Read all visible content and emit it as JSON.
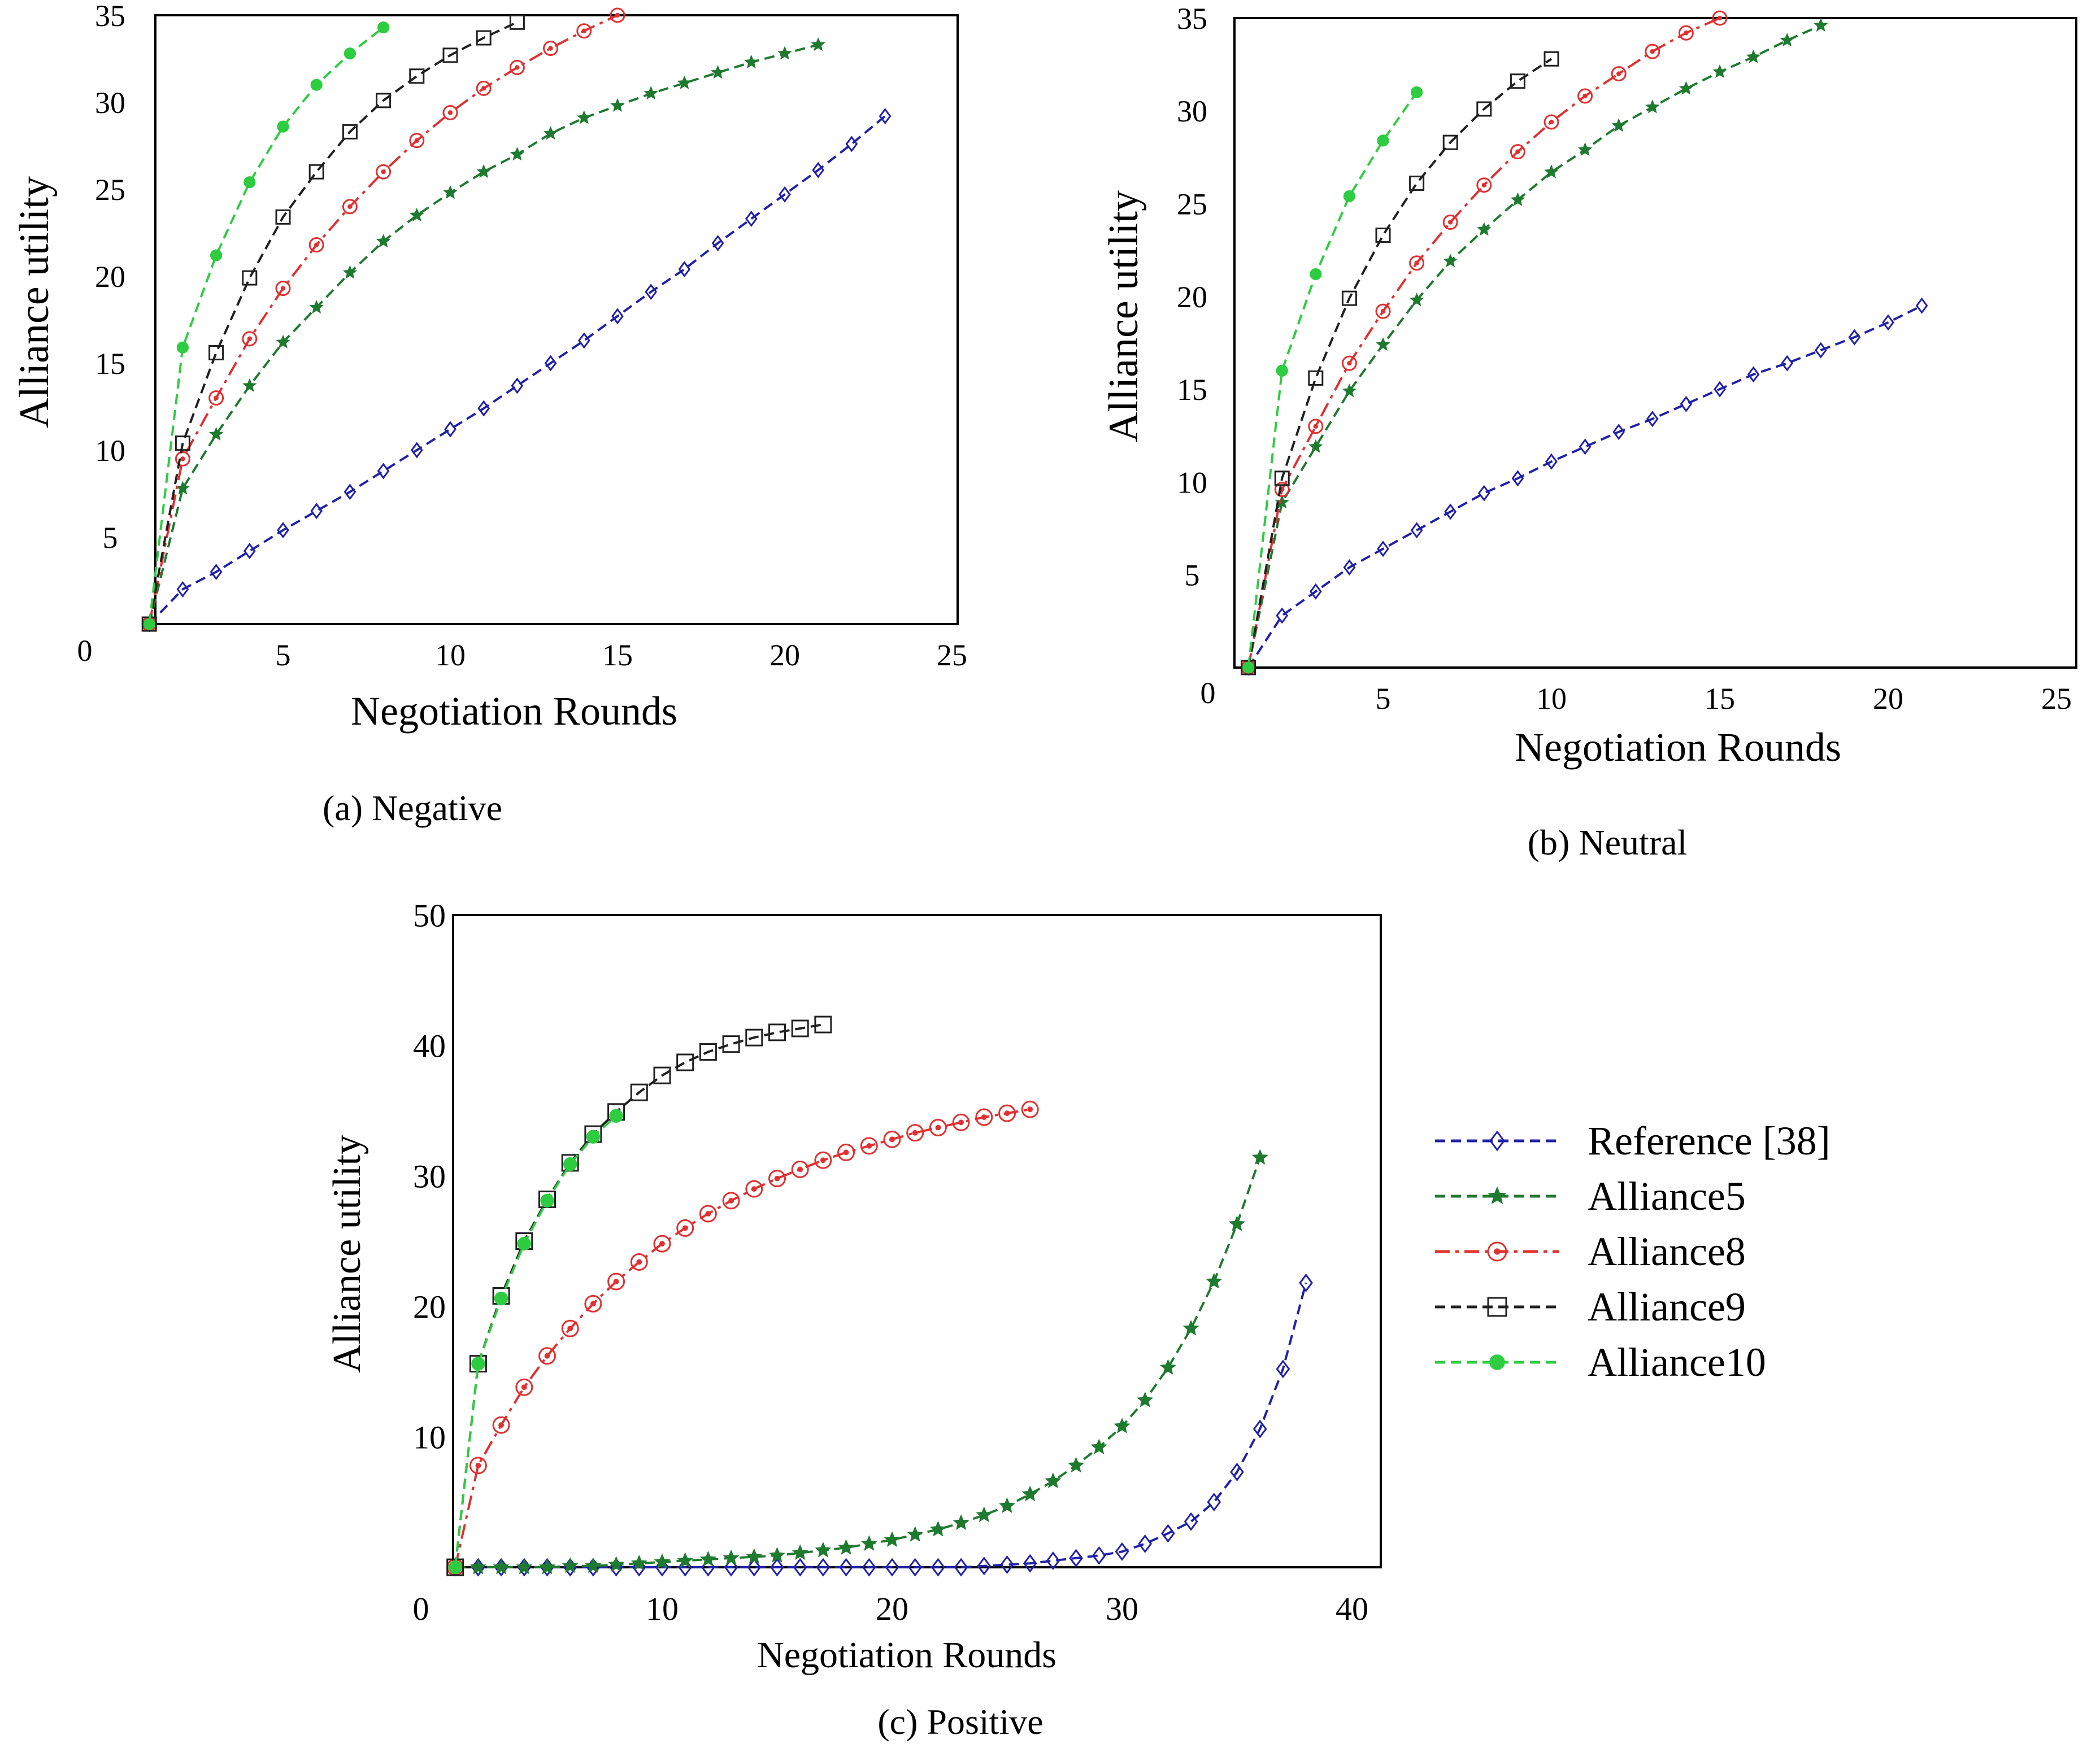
{
  "figure": {
    "legend": {
      "entries": [
        {
          "label": "Reference [38]",
          "series": "ref"
        },
        {
          "label": "Alliance5",
          "series": "a5"
        },
        {
          "label": "Alliance8",
          "series": "a8"
        },
        {
          "label": "Alliance9",
          "series": "a9"
        },
        {
          "label": "Alliance10",
          "series": "a10"
        }
      ]
    }
  },
  "series_styles": {
    "ref": {
      "color": "#2020a8",
      "marker": "diamond",
      "dash": "dashed"
    },
    "a5": {
      "color": "#1e7a2e",
      "marker": "star",
      "dash": "dashed"
    },
    "a8": {
      "color": "#e03030",
      "marker": "circle",
      "dash": "dashdot"
    },
    "a9": {
      "color": "#202020",
      "marker": "square",
      "dash": "dashed"
    },
    "a10": {
      "color": "#2ecc40",
      "marker": "dot",
      "dash": "dashed"
    }
  },
  "chart_data": [
    {
      "type": "line",
      "caption": "(a) Negative",
      "xlabel": "Negotiation Rounds",
      "ylabel": "Alliance utility",
      "xlim": [
        0,
        25
      ],
      "ylim": [
        0,
        35
      ],
      "xticks": [
        "0",
        "5",
        "10",
        "15",
        "20",
        "25"
      ],
      "yticks": [
        "5",
        "10",
        "15",
        "20",
        "25",
        "30",
        "35"
      ],
      "ytick_values": [
        5,
        10,
        15,
        20,
        25,
        30,
        35
      ],
      "series": [
        {
          "name": "Reference [38]",
          "key": "ref",
          "x": [
            1,
            2,
            3,
            4,
            5,
            6,
            7,
            8,
            9,
            10,
            11,
            12,
            13,
            14,
            15,
            16,
            17,
            18,
            19,
            20,
            21,
            22,
            23
          ],
          "values": [
            0,
            2,
            3,
            4.2,
            5.4,
            6.5,
            7.6,
            8.8,
            10,
            11.2,
            12.4,
            13.7,
            15,
            16.3,
            17.7,
            19.1,
            20.4,
            21.9,
            23.3,
            24.7,
            26.1,
            27.6,
            29.2
          ]
        },
        {
          "name": "Alliance5",
          "key": "a5",
          "x": [
            1,
            2,
            3,
            4,
            5,
            6,
            7,
            8,
            9,
            10,
            11,
            12,
            13,
            14,
            15,
            16,
            17,
            18,
            19,
            20,
            21
          ],
          "values": [
            0,
            7.8,
            10.9,
            13.7,
            16.2,
            18.2,
            20.2,
            22,
            23.5,
            24.8,
            26,
            27,
            28.2,
            29.1,
            29.8,
            30.5,
            31.1,
            31.7,
            32.3,
            32.8,
            33.3
          ]
        },
        {
          "name": "Alliance8",
          "key": "a8",
          "x": [
            1,
            2,
            3,
            4,
            5,
            6,
            7,
            8,
            9,
            10,
            11,
            12,
            13,
            14,
            15
          ],
          "values": [
            0,
            9.5,
            13,
            16.4,
            19.3,
            21.8,
            24,
            26,
            27.8,
            29.4,
            30.8,
            32,
            33.1,
            34.1,
            35
          ]
        },
        {
          "name": "Alliance9",
          "key": "a9",
          "x": [
            1,
            2,
            3,
            4,
            5,
            6,
            7,
            8,
            9,
            10,
            11,
            12
          ],
          "values": [
            0,
            10.4,
            15.6,
            19.9,
            23.4,
            26,
            28.3,
            30.1,
            31.5,
            32.7,
            33.7,
            34.6
          ]
        },
        {
          "name": "Alliance10",
          "key": "a10",
          "x": [
            1,
            2,
            3,
            4,
            5,
            6,
            7,
            8
          ],
          "values": [
            0,
            15.9,
            21.2,
            25.4,
            28.6,
            31,
            32.8,
            34.3
          ]
        }
      ]
    },
    {
      "type": "line",
      "caption": "(b) Neutral",
      "xlabel": "Negotiation Rounds",
      "ylabel": "Alliance utility",
      "xlim": [
        0,
        25
      ],
      "ylim": [
        0,
        35
      ],
      "xticks": [
        "0",
        "5",
        "10",
        "15",
        "20",
        "25"
      ],
      "yticks": [
        "5",
        "10",
        "15",
        "20",
        "25",
        "30",
        "35"
      ],
      "ytick_values": [
        5,
        10,
        15,
        20,
        25,
        30,
        35
      ],
      "series": [
        {
          "name": "Reference [38]",
          "key": "ref",
          "x": [
            1,
            2,
            3,
            4,
            5,
            6,
            7,
            8,
            9,
            10,
            11,
            12,
            13,
            14,
            15,
            16,
            17,
            18,
            19,
            20,
            21
          ],
          "values": [
            0,
            2.8,
            4.1,
            5.4,
            6.4,
            7.4,
            8.4,
            9.4,
            10.2,
            11.1,
            11.9,
            12.7,
            13.4,
            14.2,
            15,
            15.8,
            16.4,
            17.1,
            17.8,
            18.6,
            19.5
          ]
        },
        {
          "name": "Alliance5",
          "key": "a5",
          "x": [
            1,
            2,
            3,
            4,
            5,
            6,
            7,
            8,
            9,
            10,
            11,
            12,
            13,
            14,
            15,
            16,
            17,
            18
          ],
          "values": [
            0,
            8.9,
            11.9,
            14.9,
            17.4,
            19.8,
            21.9,
            23.6,
            25.2,
            26.7,
            27.9,
            29.2,
            30.2,
            31.2,
            32.1,
            32.9,
            33.8,
            34.6
          ]
        },
        {
          "name": "Alliance8",
          "key": "a8",
          "x": [
            1,
            2,
            3,
            4,
            5,
            6,
            7,
            8,
            9,
            10,
            11,
            12,
            13,
            14,
            15
          ],
          "values": [
            0,
            9.6,
            13,
            16.4,
            19.2,
            21.8,
            24,
            26,
            27.8,
            29.4,
            30.8,
            32,
            33.2,
            34.2,
            35
          ]
        },
        {
          "name": "Alliance9",
          "key": "a9",
          "x": [
            1,
            2,
            3,
            4,
            5,
            6,
            7,
            8,
            9,
            10
          ],
          "values": [
            0,
            10.2,
            15.6,
            19.9,
            23.3,
            26.1,
            28.3,
            30.1,
            31.6,
            32.8
          ]
        },
        {
          "name": "Alliance10",
          "key": "a10",
          "x": [
            1,
            2,
            3,
            4,
            5,
            6
          ],
          "values": [
            0,
            16,
            21.2,
            25.4,
            28.4,
            31
          ]
        }
      ]
    },
    {
      "type": "line",
      "caption": "(c) Positive",
      "xlabel": "Negotiation Rounds",
      "ylabel": "Alliance utility",
      "xlim": [
        0,
        40
      ],
      "ylim": [
        0,
        50
      ],
      "xticks": [
        "0",
        "10",
        "20",
        "30",
        "40"
      ],
      "yticks": [
        "10",
        "20",
        "30",
        "40",
        "50"
      ],
      "ytick_values": [
        10,
        20,
        30,
        40,
        50
      ],
      "series": [
        {
          "name": "Reference [38]",
          "key": "ref",
          "x": [
            1,
            2,
            3,
            4,
            5,
            6,
            7,
            8,
            9,
            10,
            11,
            12,
            13,
            14,
            15,
            16,
            17,
            18,
            19,
            20,
            21,
            22,
            23,
            24,
            25,
            26,
            27,
            28,
            29,
            30,
            31,
            32,
            33,
            34,
            35,
            36,
            37,
            38
          ],
          "values": [
            0,
            0,
            0,
            0,
            0,
            0,
            0,
            0,
            0,
            0,
            0,
            0,
            0,
            0,
            0,
            0,
            0,
            0,
            0,
            0,
            0,
            0,
            0,
            0.1,
            0.2,
            0.3,
            0.5,
            0.7,
            0.9,
            1.2,
            1.8,
            2.6,
            3.5,
            5,
            7.3,
            10.6,
            15.2,
            21.8
          ]
        },
        {
          "name": "Alliance5",
          "key": "a5",
          "x": [
            1,
            2,
            3,
            4,
            5,
            6,
            7,
            8,
            9,
            10,
            11,
            12,
            13,
            14,
            15,
            16,
            17,
            18,
            19,
            20,
            21,
            22,
            23,
            24,
            25,
            26,
            27,
            28,
            29,
            30,
            31,
            32,
            33,
            34,
            35,
            36
          ],
          "values": [
            0,
            0,
            0,
            0,
            0,
            0.1,
            0.1,
            0.2,
            0.3,
            0.4,
            0.5,
            0.6,
            0.7,
            0.8,
            0.9,
            1.1,
            1.3,
            1.5,
            1.8,
            2.1,
            2.5,
            2.9,
            3.4,
            4,
            4.7,
            5.6,
            6.6,
            7.8,
            9.2,
            10.8,
            12.8,
            15.3,
            18.3,
            21.9,
            26.3,
            31.4
          ]
        },
        {
          "name": "Alliance8",
          "key": "a8",
          "x": [
            1,
            2,
            3,
            4,
            5,
            6,
            7,
            8,
            9,
            10,
            11,
            12,
            13,
            14,
            15,
            16,
            17,
            18,
            19,
            20,
            21,
            22,
            23,
            24,
            25,
            26
          ],
          "values": [
            0,
            7.8,
            10.9,
            13.8,
            16.2,
            18.3,
            20.2,
            21.9,
            23.4,
            24.8,
            26,
            27.1,
            28.1,
            29,
            29.8,
            30.5,
            31.2,
            31.8,
            32.3,
            32.8,
            33.3,
            33.7,
            34.1,
            34.5,
            34.8,
            35.1
          ]
        },
        {
          "name": "Alliance9",
          "key": "a9",
          "x": [
            1,
            2,
            3,
            4,
            5,
            6,
            7,
            8,
            9,
            10,
            11,
            12,
            13,
            14,
            15,
            16,
            17
          ],
          "values": [
            0,
            15.6,
            20.8,
            25,
            28.2,
            31,
            33.2,
            34.9,
            36.4,
            37.7,
            38.7,
            39.5,
            40.1,
            40.6,
            41,
            41.3,
            41.6
          ]
        },
        {
          "name": "Alliance10",
          "key": "a10",
          "x": [
            1,
            2,
            3,
            4,
            5,
            6,
            7,
            8
          ],
          "values": [
            0,
            15.6,
            20.6,
            24.8,
            28.1,
            30.9,
            33,
            34.6
          ]
        }
      ]
    }
  ]
}
